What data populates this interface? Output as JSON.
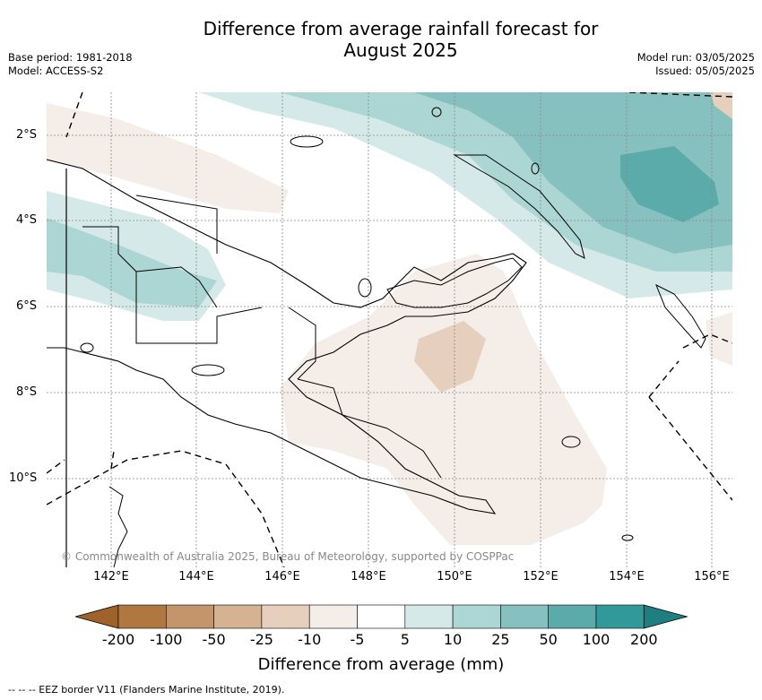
{
  "title_line1": "Difference from average rainfall forecast for",
  "title_line2": "August 2025",
  "base_period": "Base period: 1981-2018",
  "model": "Model: ACCESS-S2",
  "model_run": "Model run: 03/05/2025",
  "issued": "Issued: 05/05/2025",
  "lat_labels": [
    "2°S",
    "4°S",
    "6°S",
    "8°S",
    "10°S"
  ],
  "lon_labels": [
    "142°E",
    "144°E",
    "146°E",
    "148°E",
    "150°E",
    "152°E",
    "154°E",
    "156°E"
  ],
  "copyright": "© Commonwealth of Australia 2025, Bureau of Meteorology, supported by COSPPac",
  "colorbar": {
    "label": "Difference from average (mm)",
    "ticks": [
      "-200",
      "-100",
      "-50",
      "-25",
      "-10",
      "-5",
      "5",
      "10",
      "25",
      "50",
      "100",
      "200"
    ],
    "colors": [
      "#a0622d",
      "#b07840",
      "#c4946a",
      "#d5b292",
      "#e6d0bd",
      "#f5ede7",
      "#ffffff",
      "#d5eae8",
      "#acd6d4",
      "#86c0bf",
      "#5aabaa",
      "#32999a",
      "#1f7f80"
    ]
  },
  "footnote": "--  --  -- EEZ border V11 (Flanders Marine Institute, 2019)."
}
